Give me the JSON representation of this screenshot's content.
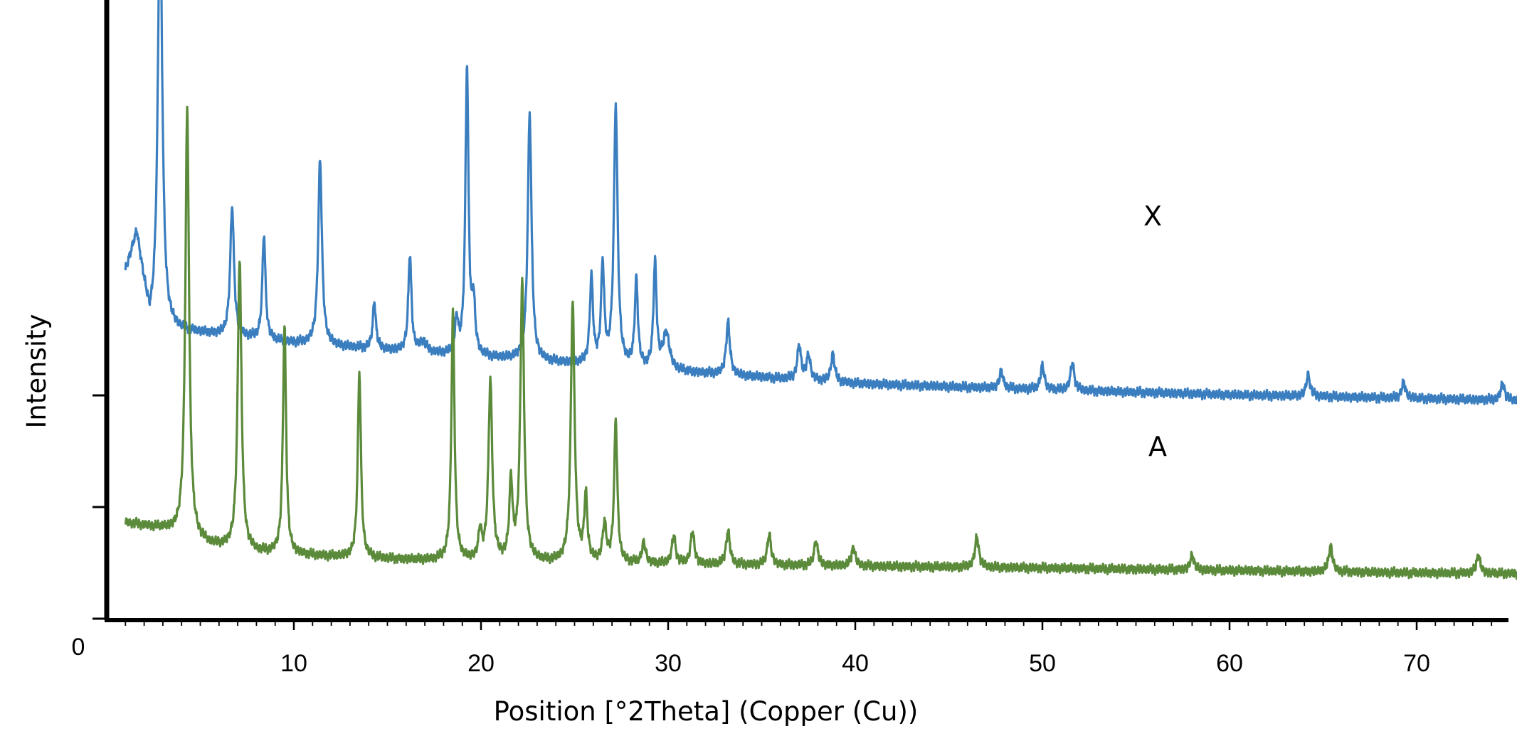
{
  "chart_data": {
    "type": "line",
    "xlabel": "Position [°2Theta] (Copper (Cu))",
    "ylabel": "Intensity",
    "xlim": [
      0,
      80
    ],
    "x_ticks": [
      "0",
      "10",
      "20",
      "30",
      "40",
      "50",
      "60",
      "70"
    ],
    "grid": false,
    "series": [
      {
        "name": "X",
        "color": "#3a7ebf",
        "x_range": [
          1,
          80
        ],
        "baseline": [
          [
            1,
            0.56
          ],
          [
            1.6,
            0.62
          ],
          [
            2.3,
            0.47
          ],
          [
            10,
            0.445
          ],
          [
            20,
            0.422
          ],
          [
            30,
            0.4
          ],
          [
            40,
            0.38
          ],
          [
            50,
            0.37
          ],
          [
            60,
            0.362
          ],
          [
            70,
            0.356
          ],
          [
            80,
            0.35
          ]
        ],
        "peaks": [
          {
            "x": 2.85,
            "h": 0.7,
            "w": 0.14
          },
          {
            "x": 6.7,
            "h": 0.21,
            "w": 0.12
          },
          {
            "x": 8.4,
            "h": 0.17,
            "w": 0.1
          },
          {
            "x": 11.4,
            "h": 0.3,
            "w": 0.12
          },
          {
            "x": 14.3,
            "h": 0.076,
            "w": 0.1
          },
          {
            "x": 16.2,
            "h": 0.157,
            "w": 0.1
          },
          {
            "x": 16.9,
            "h": 0.017,
            "w": 0.2
          },
          {
            "x": 18.7,
            "h": 0.054,
            "w": 0.1
          },
          {
            "x": 19.25,
            "h": 0.465,
            "w": 0.1
          },
          {
            "x": 19.6,
            "h": 0.08,
            "w": 0.1
          },
          {
            "x": 22.6,
            "h": 0.4,
            "w": 0.12
          },
          {
            "x": 25.9,
            "h": 0.14,
            "w": 0.1
          },
          {
            "x": 26.5,
            "h": 0.16,
            "w": 0.1
          },
          {
            "x": 27.2,
            "h": 0.42,
            "w": 0.12
          },
          {
            "x": 28.3,
            "h": 0.14,
            "w": 0.1
          },
          {
            "x": 29.3,
            "h": 0.17,
            "w": 0.1
          },
          {
            "x": 29.9,
            "h": 0.06,
            "w": 0.2
          },
          {
            "x": 33.2,
            "h": 0.085,
            "w": 0.12
          },
          {
            "x": 37.0,
            "h": 0.055,
            "w": 0.12
          },
          {
            "x": 37.5,
            "h": 0.04,
            "w": 0.12
          },
          {
            "x": 38.8,
            "h": 0.045,
            "w": 0.12
          },
          {
            "x": 47.8,
            "h": 0.028,
            "w": 0.12
          },
          {
            "x": 50.0,
            "h": 0.039,
            "w": 0.12
          },
          {
            "x": 51.6,
            "h": 0.045,
            "w": 0.12
          },
          {
            "x": 64.2,
            "h": 0.035,
            "w": 0.12
          },
          {
            "x": 69.3,
            "h": 0.026,
            "w": 0.12
          },
          {
            "x": 74.6,
            "h": 0.028,
            "w": 0.12
          }
        ]
      },
      {
        "name": "A",
        "color": "#5a8a3a",
        "x_range": [
          1,
          80
        ],
        "baseline": [
          [
            1,
            0.155
          ],
          [
            3,
            0.145
          ],
          [
            4,
            0.135
          ],
          [
            5.5,
            0.118
          ],
          [
            8,
            0.106
          ],
          [
            12,
            0.1
          ],
          [
            16,
            0.095
          ],
          [
            20,
            0.092
          ],
          [
            24,
            0.09
          ],
          [
            30,
            0.088
          ],
          [
            40,
            0.085
          ],
          [
            50,
            0.082
          ],
          [
            60,
            0.078
          ],
          [
            70,
            0.074
          ],
          [
            80,
            0.072
          ]
        ],
        "peaks": [
          {
            "x": 4.3,
            "h": 0.69,
            "w": 0.12
          },
          {
            "x": 7.1,
            "h": 0.47,
            "w": 0.12
          },
          {
            "x": 9.5,
            "h": 0.37,
            "w": 0.1
          },
          {
            "x": 13.5,
            "h": 0.3,
            "w": 0.1
          },
          {
            "x": 18.5,
            "h": 0.4,
            "w": 0.1
          },
          {
            "x": 19.95,
            "h": 0.045,
            "w": 0.1
          },
          {
            "x": 20.5,
            "h": 0.29,
            "w": 0.12
          },
          {
            "x": 21.6,
            "h": 0.125,
            "w": 0.1
          },
          {
            "x": 22.2,
            "h": 0.45,
            "w": 0.12
          },
          {
            "x": 24.9,
            "h": 0.42,
            "w": 0.12
          },
          {
            "x": 25.6,
            "h": 0.105,
            "w": 0.1
          },
          {
            "x": 26.6,
            "h": 0.06,
            "w": 0.12
          },
          {
            "x": 27.2,
            "h": 0.23,
            "w": 0.1
          },
          {
            "x": 28.7,
            "h": 0.033,
            "w": 0.12
          },
          {
            "x": 30.3,
            "h": 0.045,
            "w": 0.12
          },
          {
            "x": 31.3,
            "h": 0.053,
            "w": 0.12
          },
          {
            "x": 33.2,
            "h": 0.055,
            "w": 0.12
          },
          {
            "x": 35.4,
            "h": 0.05,
            "w": 0.12
          },
          {
            "x": 37.9,
            "h": 0.04,
            "w": 0.12
          },
          {
            "x": 39.9,
            "h": 0.03,
            "w": 0.12
          },
          {
            "x": 46.5,
            "h": 0.05,
            "w": 0.12
          },
          {
            "x": 58.0,
            "h": 0.024,
            "w": 0.12
          },
          {
            "x": 65.4,
            "h": 0.042,
            "w": 0.12
          },
          {
            "x": 73.3,
            "h": 0.03,
            "w": 0.12
          }
        ]
      }
    ]
  }
}
